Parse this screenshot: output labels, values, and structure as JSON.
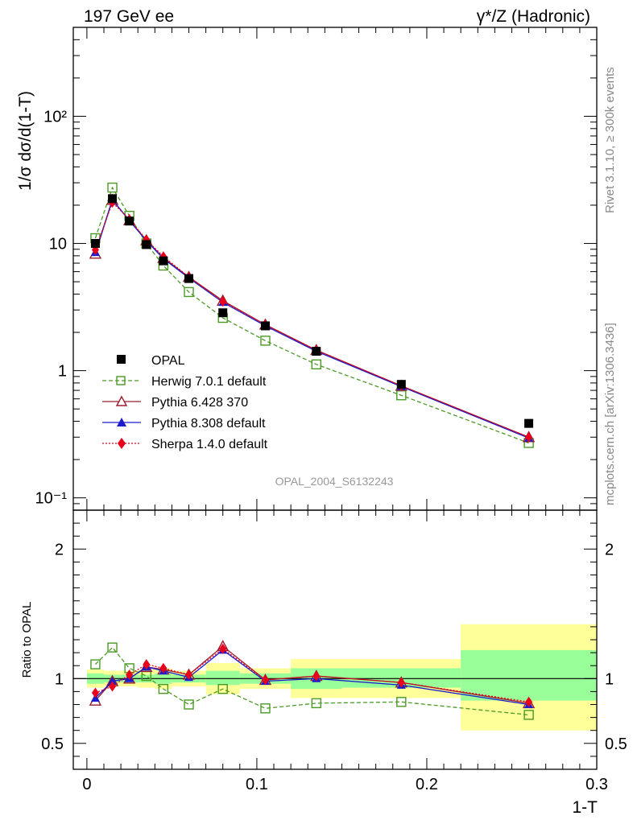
{
  "header": {
    "left": "197 GeV ee",
    "right": "γ*/Z (Hadronic)"
  },
  "side_labels": {
    "rivet": "Rivet 3.1.10, ≥ 300k events",
    "mcplots": "mcplots.cern.ch [arXiv:1306.3436]"
  },
  "watermark": "OPAL_2004_S6132243",
  "chart_data": {
    "type": "line",
    "xlabel": "1-T",
    "ylabel_main": "1/σ dσ/d(1-T)",
    "ylabel_ratio": "Ratio to OPAL",
    "x_range": [
      -0.008,
      0.3
    ],
    "x_ticks": [
      "0",
      "0.1",
      "0.2",
      "0.3"
    ],
    "x_tick_values": [
      0,
      0.1,
      0.2,
      0.3
    ],
    "main": {
      "yscale": "log",
      "ylim": [
        0.08,
        500
      ],
      "y_ticks": [
        "10⁻¹",
        "1",
        "10",
        "10²"
      ],
      "y_tick_values": [
        0.1,
        1,
        10,
        100
      ]
    },
    "ratio": {
      "ylim": [
        0.3,
        2.3
      ],
      "y_ticks": [
        "0.5",
        "1",
        "2"
      ],
      "y_tick_values": [
        0.5,
        1,
        2
      ]
    },
    "bins": [
      [
        0,
        0.01
      ],
      [
        0.01,
        0.02
      ],
      [
        0.02,
        0.03
      ],
      [
        0.03,
        0.04
      ],
      [
        0.04,
        0.05
      ],
      [
        0.05,
        0.07
      ],
      [
        0.07,
        0.09
      ],
      [
        0.09,
        0.12
      ],
      [
        0.12,
        0.15
      ],
      [
        0.15,
        0.22
      ],
      [
        0.22,
        0.3
      ]
    ],
    "x": [
      0.005,
      0.015,
      0.025,
      0.035,
      0.045,
      0.06,
      0.08,
      0.105,
      0.135,
      0.185,
      0.26
    ],
    "data": {
      "name": "OPAL",
      "values": [
        10.0,
        22.5,
        15.0,
        9.8,
        7.3,
        5.3,
        2.85,
        2.25,
        1.42,
        0.78,
        0.385
      ]
    },
    "bands": {
      "stat_lo": [
        0.96,
        0.97,
        0.97,
        0.97,
        0.96,
        0.97,
        0.95,
        0.96,
        0.92,
        0.93,
        0.83
      ],
      "stat_hi": [
        1.04,
        1.03,
        1.03,
        1.03,
        1.04,
        1.03,
        1.06,
        1.04,
        1.08,
        1.08,
        1.22
      ],
      "tot_lo": [
        0.93,
        0.94,
        0.94,
        0.93,
        0.92,
        0.94,
        0.88,
        0.92,
        0.85,
        0.85,
        0.6
      ],
      "tot_hi": [
        1.07,
        1.06,
        1.06,
        1.07,
        1.08,
        1.06,
        1.12,
        1.08,
        1.15,
        1.15,
        1.42
      ]
    },
    "series": [
      {
        "name": "Herwig 7.0.1 default",
        "color": "#4a9a24",
        "marker": "open-square",
        "dash": "5,3",
        "values": [
          11.0,
          27.5,
          16.5,
          10.0,
          6.7,
          4.15,
          2.6,
          1.72,
          1.12,
          0.64,
          0.27
        ],
        "ratio": [
          1.11,
          1.24,
          1.08,
          1.02,
          0.92,
          0.8,
          0.92,
          0.77,
          0.81,
          0.82,
          0.72
        ]
      },
      {
        "name": "Pythia 6.428 370",
        "color": "#9b1c2c",
        "marker": "open-triangle",
        "dash": "",
        "values": [
          8.3,
          22.0,
          15.2,
          10.6,
          7.7,
          5.45,
          3.55,
          2.3,
          1.45,
          0.76,
          0.3
        ],
        "ratio": [
          0.83,
          0.98,
          1.0,
          1.09,
          1.07,
          1.03,
          1.25,
          0.99,
          1.02,
          0.97,
          0.81
        ]
      },
      {
        "name": "Pythia 8.308 default",
        "color": "#1c1ccc",
        "marker": "filled-triangle",
        "dash": "",
        "values": [
          8.5,
          22.1,
          15.1,
          10.5,
          7.6,
          5.35,
          3.45,
          2.25,
          1.42,
          0.75,
          0.295
        ],
        "ratio": [
          0.85,
          0.98,
          1.0,
          1.09,
          1.06,
          1.01,
          1.22,
          0.98,
          1.0,
          0.95,
          0.8
        ]
      },
      {
        "name": "Sherpa 1.4.0 default",
        "color": "#e8001c",
        "marker": "filled-diamond",
        "dash": "2,2",
        "values": [
          8.9,
          21.0,
          15.5,
          10.7,
          7.9,
          5.45,
          3.5,
          2.3,
          1.45,
          0.76,
          0.3
        ],
        "ratio": [
          0.89,
          0.94,
          1.03,
          1.11,
          1.08,
          1.03,
          1.23,
          0.99,
          1.02,
          0.97,
          0.82
        ]
      }
    ]
  }
}
